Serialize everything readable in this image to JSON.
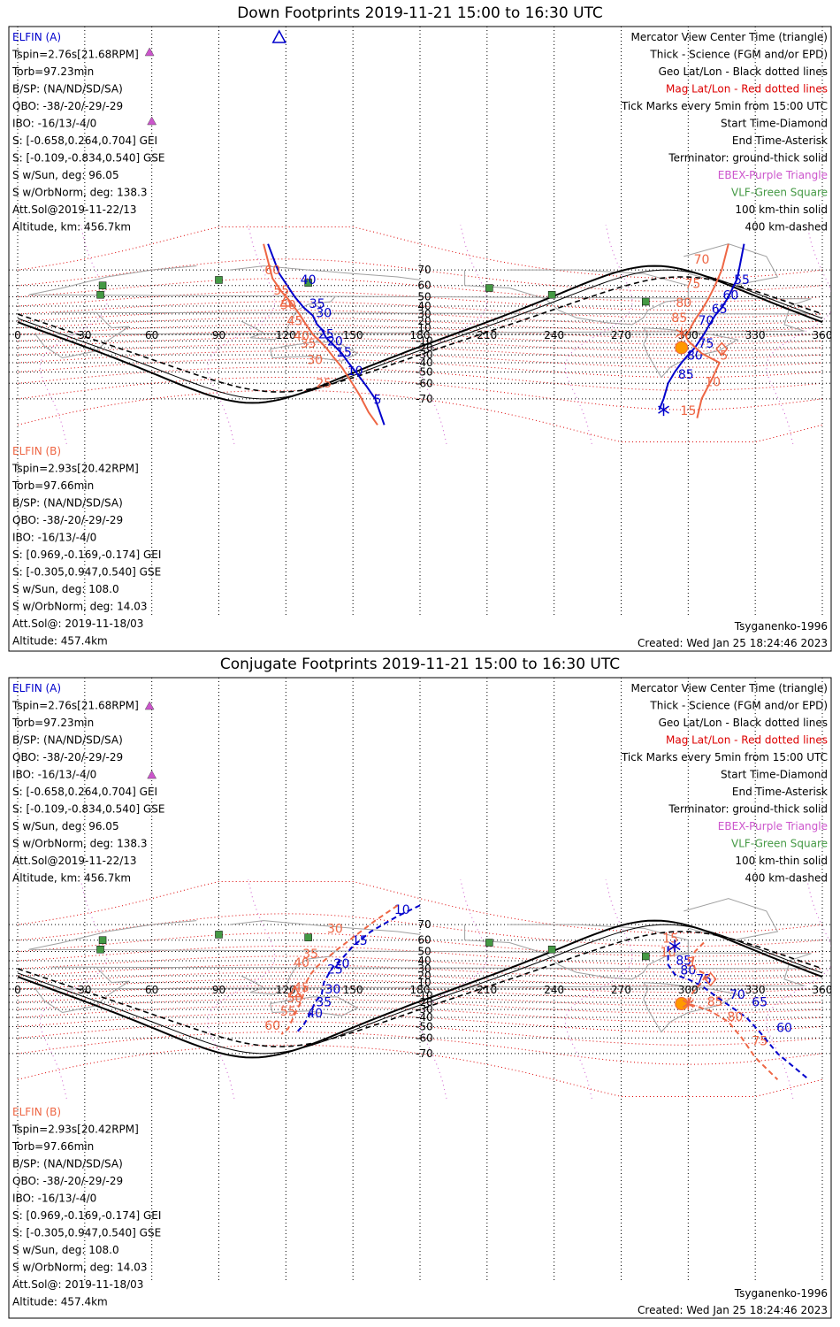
{
  "colors": {
    "elfin_a": "#0000cc",
    "elfin_b": "#ee6644",
    "geo_grid": "#000000",
    "mag_grid": "#dd0000",
    "ebex": "#cc55cc",
    "vlf": "#449944",
    "coast": "#a0a0a0",
    "sun": "#ff9900"
  },
  "panels": [
    {
      "id": "down",
      "title": "Down Footprints 2019-11-21 15:00 to 16:30 UTC",
      "elfin_a": {
        "label": "ELFIN (A)",
        "lines": [
          "Tspin=2.76s[21.68RPM]",
          "Torb=97.23min",
          "B/SP: (NA/ND/SD/SA)",
          "QBO: -38/-20/-29/-29",
          "IBO: -16/13/-4/0",
          "S: [-0.658,0.264,0.704] GEI",
          "S: [-0.109,-0.834,0.540] GSE",
          "S w/Sun, deg: 96.05",
          "S w/OrbNorm, deg: 138.3",
          "Att.Sol@2019-11-22/13",
          "Altitude, km: 456.7km"
        ]
      },
      "elfin_b": {
        "label": "ELFIN (B)",
        "lines": [
          "Tspin=2.93s[20.42RPM]",
          "Torb=97.66min",
          "B/SP: (NA/ND/SD/SA)",
          "QBO: -38/-20/-29/-29",
          "IBO: -16/13/-4/0",
          "S: [0.969,-0.169,-0.174] GEI",
          "S: [-0.305,0.947,0.540] GSE",
          "S w/Sun, deg: 108.0",
          "S w/OrbNorm, deg: 14.03",
          "Att.Sol@: 2019-11-18/03",
          "Altitude: 457.4km"
        ]
      },
      "legend": [
        "Mercator View Center Time (triangle)",
        "Thick - Science (FGM and/or EPD)",
        "Geo Lat/Lon - Black dotted lines",
        "Mag Lat/Lon - Red dotted lines",
        "Tick Marks every 5min from 15:00 UTC",
        "Start Time-Diamond",
        "End Time-Asterisk",
        "Terminator: ground-thick solid",
        "EBEX-Purple Triangle",
        "VLF-Green Square",
        "100 km-thin solid",
        "400 km-dashed"
      ],
      "model": "Tsyganenko-1996",
      "created": "Created: Wed Jan 25 18:24:46 2023"
    },
    {
      "id": "conj",
      "title": "Conjugate Footprints 2019-11-21 15:00 to 16:30 UTC",
      "elfin_a": {
        "label": "ELFIN (A)",
        "lines": [
          "Tspin=2.76s[21.68RPM]",
          "Torb=97.23min",
          "B/SP: (NA/ND/SD/SA)",
          "QBO: -38/-20/-29/-29",
          "IBO: -16/13/-4/0",
          "S: [-0.658,0.264,0.704] GEI",
          "S: [-0.109,-0.834,0.540] GSE",
          "S w/Sun, deg: 96.05",
          "S w/OrbNorm, deg: 138.3",
          "Att.Sol@2019-11-22/13",
          "Altitude, km: 456.7km"
        ]
      },
      "elfin_b": {
        "label": "ELFIN (B)",
        "lines": [
          "Tspin=2.93s[20.42RPM]",
          "Torb=97.66min",
          "B/SP: (NA/ND/SD/SA)",
          "QBO: -38/-20/-29/-29",
          "IBO: -16/13/-4/0",
          "S: [0.969,-0.169,-0.174] GEI",
          "S: [-0.305,0.947,0.540] GSE",
          "S w/Sun, deg: 108.0",
          "S w/OrbNorm, deg: 14.03",
          "Att.Sol@: 2019-11-18/03",
          "Altitude: 457.4km"
        ]
      },
      "legend": [
        "Mercator View Center Time (triangle)",
        "Thick - Science (FGM and/or EPD)",
        "Geo Lat/Lon - Black dotted lines",
        "Mag Lat/Lon - Red dotted lines",
        "Tick Marks every 5min from 15:00 UTC",
        "Start Time-Diamond",
        "End Time-Asterisk",
        "Terminator: ground-thick solid",
        "EBEX-Purple Triangle",
        "VLF-Green Square",
        "100 km-thin solid",
        "400 km-dashed"
      ],
      "model": "Tsyganenko-1996",
      "created": "Created: Wed Jan 25 18:24:46 2023"
    }
  ],
  "chart_data": [
    {
      "type": "map",
      "title": "Down Footprints 2019-11-21 15:00 to 16:30 UTC",
      "projection": "Mercator",
      "xlim": [
        0,
        360
      ],
      "ylim": [
        -80,
        80
      ],
      "lon_ticks": [
        0,
        30,
        60,
        90,
        120,
        150,
        180,
        210,
        240,
        270,
        300,
        330,
        360
      ],
      "lat_ticks": [
        -70,
        -60,
        -50,
        -40,
        -30,
        -20,
        -10,
        10,
        20,
        30,
        40,
        50,
        60,
        70
      ],
      "tracks": [
        {
          "name": "ELFIN (A)",
          "color": "#0000cc",
          "style": "solid",
          "points": [
            [
              112,
              80
            ],
            [
              117,
              68
            ],
            [
              124,
              50
            ],
            [
              128,
              38
            ],
            [
              132,
              28
            ],
            [
              134,
              15
            ],
            [
              136,
              8
            ],
            [
              138,
              -5
            ],
            [
              141,
              -15
            ],
            [
              145,
              -28
            ],
            [
              148,
              -40
            ],
            [
              152,
              -52
            ],
            [
              156,
              -62
            ],
            [
              160,
              -70
            ],
            [
              164,
              -80
            ]
          ],
          "ticks": [
            {
              "label": "5",
              "lon": 161,
              "lat": -72.5
            },
            {
              "label": "10",
              "lon": 151,
              "lat": -53
            },
            {
              "label": "15",
              "lon": 146,
              "lat": -32
            },
            {
              "label": "20",
              "lon": 142,
              "lat": -17
            },
            {
              "label": "25",
              "lon": 138,
              "lat": -6
            },
            {
              "label": "30",
              "lon": 137,
              "lat": 26
            },
            {
              "label": "35",
              "lon": 134,
              "lat": 38
            },
            {
              "label": "40",
              "lon": 130,
              "lat": 61
            }
          ]
        },
        {
          "name": "ELFIN (A)",
          "color": "#0000cc",
          "style": "solid",
          "points": [
            [
              325,
              80
            ],
            [
              322,
              65
            ],
            [
              318,
              50
            ],
            [
              315,
              38
            ],
            [
              312,
              28
            ],
            [
              309,
              12
            ],
            [
              307,
              0
            ],
            [
              305,
              -10
            ],
            [
              303,
              -20
            ],
            [
              300,
              -30
            ],
            [
              297,
              -40
            ],
            [
              294,
              -50
            ],
            [
              291,
              -60
            ],
            [
              289,
              -70
            ],
            [
              287,
              -75
            ]
          ],
          "ticks": [
            {
              "label": "55",
              "lon": 324,
              "lat": 61
            },
            {
              "label": "60",
              "lon": 319,
              "lat": 47.5
            },
            {
              "label": "65",
              "lon": 314,
              "lat": 31
            },
            {
              "label": "70",
              "lon": 308,
              "lat": 15
            },
            {
              "label": "75",
              "lon": 308,
              "lat": -20
            },
            {
              "label": "80",
              "lon": 303,
              "lat": -36
            },
            {
              "label": "85",
              "lon": 299,
              "lat": -56
            }
          ]
        },
        {
          "name": "ELFIN (B)",
          "color": "#ee6644",
          "style": "solid",
          "points": [
            [
              110,
              80
            ],
            [
              114,
              65
            ],
            [
              118,
              55
            ],
            [
              122,
              45
            ],
            [
              126,
              30
            ],
            [
              129,
              15
            ],
            [
              132,
              0
            ],
            [
              135,
              -10
            ],
            [
              138,
              -20
            ],
            [
              141,
              -32
            ],
            [
              145,
              -45
            ],
            [
              149,
              -58
            ],
            [
              153,
              -68
            ],
            [
              157,
              -76
            ],
            [
              161,
              -80
            ]
          ],
          "ticks": [
            {
              "label": "25",
              "lon": 137,
              "lat": -63
            },
            {
              "label": "30",
              "lon": 133,
              "lat": -41.5
            },
            {
              "label": "35",
              "lon": 130,
              "lat": -20
            },
            {
              "label": "40",
              "lon": 127,
              "lat": -9
            },
            {
              "label": "45",
              "lon": 124,
              "lat": 14
            },
            {
              "label": "50",
              "lon": 121,
              "lat": 36
            },
            {
              "label": "55",
              "lon": 118,
              "lat": 52
            },
            {
              "label": "60",
              "lon": 114,
              "lat": 67.5
            }
          ]
        },
        {
          "name": "ELFIN (B)",
          "color": "#ee6644",
          "style": "solid",
          "points": [
            [
              318,
              80
            ],
            [
              315,
              70
            ],
            [
              312,
              60
            ],
            [
              309,
              48
            ],
            [
              306,
              35
            ],
            [
              303,
              22
            ],
            [
              301,
              10
            ],
            [
              299,
              -3
            ],
            [
              300,
              -10
            ],
            [
              306,
              -28
            ],
            [
              314,
              -40
            ],
            [
              311,
              -55
            ],
            [
              306,
              -70
            ],
            [
              304,
              -78
            ]
          ],
          "ticks": [
            {
              "label": "70",
              "lon": 306,
              "lat": 73
            },
            {
              "label": "75",
              "lon": 302,
              "lat": 58
            },
            {
              "label": "80",
              "lon": 298,
              "lat": 39
            },
            {
              "label": "85",
              "lon": 296,
              "lat": 19
            },
            {
              "label": "5",
              "lon": 316,
              "lat": -36
            },
            {
              "label": "10",
              "lon": 311,
              "lat": -62
            },
            {
              "label": "15",
              "lon": 300,
              "lat": -77
            }
          ]
        }
      ]
    },
    {
      "type": "map",
      "title": "Conjugate Footprints 2019-11-21 15:00 to 16:30 UTC",
      "projection": "Mercator",
      "xlim": [
        0,
        360
      ],
      "ylim": [
        -80,
        80
      ],
      "lon_ticks": [
        0,
        30,
        60,
        90,
        120,
        150,
        180,
        210,
        240,
        270,
        300,
        330,
        360
      ],
      "lat_ticks": [
        -70,
        -60,
        -50,
        -40,
        -30,
        -20,
        -10,
        10,
        20,
        30,
        40,
        50,
        60,
        70
      ],
      "tracks": [
        {
          "name": "ELFIN (A)",
          "color": "#0000cc",
          "style": "dashed",
          "points": [
            [
              180,
              78
            ],
            [
              170,
              74
            ],
            [
              158,
              66
            ],
            [
              150,
              55
            ],
            [
              145,
              42
            ],
            [
              141,
              32
            ],
            [
              139,
              22
            ],
            [
              137,
              10
            ],
            [
              136,
              -8
            ],
            [
              133,
              -20
            ],
            [
              131,
              -35
            ],
            [
              128,
              -48
            ],
            [
              125,
              -55
            ]
          ],
          "ticks": [
            {
              "label": "10",
              "lon": 172,
              "lat": 75
            },
            {
              "label": "15",
              "lon": 153,
              "lat": 56
            },
            {
              "label": "20",
              "lon": 145,
              "lat": 31
            },
            {
              "label": "25",
              "lon": 142,
              "lat": 23
            },
            {
              "label": "30",
              "lon": 141,
              "lat": -7
            },
            {
              "label": "35",
              "lon": 137,
              "lat": -26
            },
            {
              "label": "40",
              "lon": 133,
              "lat": -40
            }
          ]
        },
        {
          "name": "ELFIN (A)",
          "color": "#0000cc",
          "style": "dashed",
          "points": [
            [
              291,
              55
            ],
            [
              291,
              45
            ],
            [
              291,
              35
            ],
            [
              294,
              22
            ],
            [
              300,
              15
            ],
            [
              306,
              5
            ],
            [
              312,
              -10
            ],
            [
              318,
              -24
            ],
            [
              326,
              -40
            ],
            [
              332,
              -55
            ],
            [
              340,
              -70
            ],
            [
              354,
              -80
            ]
          ],
          "ticks": [
            {
              "label": "85",
              "lon": 298,
              "lat": 35
            },
            {
              "label": "80",
              "lon": 300,
              "lat": 22
            },
            {
              "label": "75",
              "lon": 307,
              "lat": 9
            },
            {
              "label": "70",
              "lon": 322,
              "lat": -15
            },
            {
              "label": "65",
              "lon": 332,
              "lat": -26
            },
            {
              "label": "60",
              "lon": 343,
              "lat": -55
            }
          ]
        },
        {
          "name": "ELFIN (B)",
          "color": "#ee6644",
          "style": "dashed",
          "points": [
            [
              170,
              78
            ],
            [
              160,
              72
            ],
            [
              150,
              62
            ],
            [
              143,
              52
            ],
            [
              138,
              42
            ],
            [
              134,
              33
            ],
            [
              131,
              22
            ],
            [
              129,
              10
            ],
            [
              128,
              -5
            ],
            [
              127,
              -18
            ],
            [
              125,
              -30
            ],
            [
              123,
              -42
            ],
            [
              121,
              -52
            ],
            [
              118,
              -57
            ]
          ],
          "ticks": [
            {
              "label": "30",
              "lon": 142,
              "lat": 65
            },
            {
              "label": "35",
              "lon": 131,
              "lat": 43
            },
            {
              "label": "40",
              "lon": 127,
              "lat": 32
            },
            {
              "label": "45",
              "lon": 127,
              "lat": -4
            },
            {
              "label": "50",
              "lon": 124,
              "lat": -20
            },
            {
              "label": "55",
              "lon": 121,
              "lat": -38
            },
            {
              "label": "60",
              "lon": 114,
              "lat": -53
            }
          ]
        },
        {
          "name": "ELFIN (B)",
          "color": "#ee6644",
          "style": "dashed",
          "points": [
            [
              307,
              58
            ],
            [
              303,
              50
            ],
            [
              302,
              40
            ],
            [
              303,
              30
            ],
            [
              308,
              22
            ],
            [
              306,
              10
            ],
            [
              302,
              -5
            ],
            [
              300,
              -22
            ],
            [
              310,
              -32
            ],
            [
              318,
              -45
            ],
            [
              324,
              -60
            ],
            [
              330,
              -72
            ],
            [
              340,
              -80
            ]
          ],
          "ticks": [
            {
              "label": "15",
              "lon": 292,
              "lat": 58
            },
            {
              "label": "10",
              "lon": 291,
              "lat": 45
            },
            {
              "label": "5",
              "lon": 301,
              "lat": 33
            },
            {
              "label": "85",
              "lon": 312,
              "lat": -25
            },
            {
              "label": "80",
              "lon": 321,
              "lat": -44
            },
            {
              "label": "75",
              "lon": 332,
              "lat": -65
            }
          ]
        }
      ]
    }
  ]
}
